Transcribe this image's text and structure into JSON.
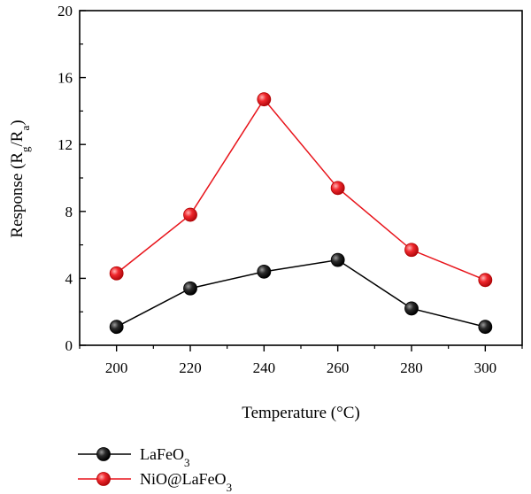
{
  "chart_data": {
    "type": "line",
    "xlabel": "Temperature (°C)",
    "ylabel": {
      "main": "Response (R",
      "sub1": "g",
      "mid": "/R",
      "sub2": "a",
      "end": ")"
    },
    "x": [
      200,
      220,
      240,
      260,
      280,
      300
    ],
    "xticks": [
      "200",
      "220",
      "240",
      "260",
      "280",
      "300"
    ],
    "xlim": [
      190,
      310
    ],
    "yticks": [
      "0",
      "4",
      "8",
      "12",
      "16",
      "20"
    ],
    "ylim": [
      0,
      20
    ],
    "grid": false,
    "legend_placement": "bottom-left",
    "series": [
      {
        "name": {
          "base": "LaFeO",
          "sub": "3"
        },
        "color": "#000000",
        "values": [
          1.1,
          3.4,
          4.4,
          5.1,
          2.2,
          1.1
        ]
      },
      {
        "name": {
          "base": "NiO@LaFeO",
          "sub": "3"
        },
        "color": "#e8141b",
        "values": [
          4.3,
          7.8,
          14.7,
          9.4,
          5.7,
          3.9
        ]
      }
    ]
  }
}
